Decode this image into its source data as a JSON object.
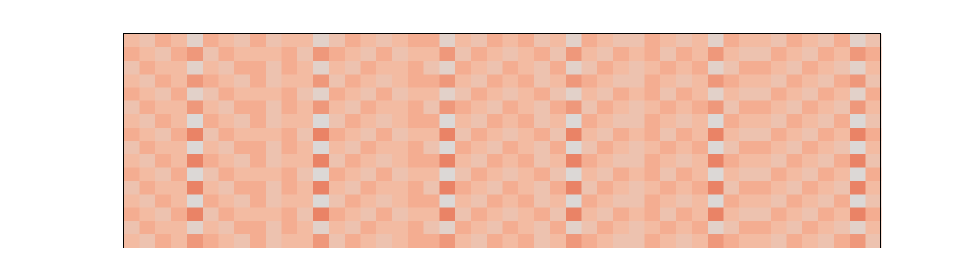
{
  "chart_data": {
    "type": "heatmap",
    "zlim": [
      0,
      9
    ],
    "colormap": [
      "#dcd8d6",
      "#f6b79c",
      "#e05a3a"
    ],
    "values": [
      [
        4,
        3,
        5,
        4,
        1,
        5,
        4,
        3,
        5,
        3,
        4,
        4,
        1,
        3,
        5,
        4,
        3,
        4,
        5,
        5,
        1,
        4,
        3,
        5,
        4,
        5,
        3,
        4,
        1,
        5,
        4,
        3,
        3,
        5,
        4,
        3,
        4,
        1,
        5,
        4,
        4,
        3,
        5,
        4,
        3,
        5,
        1,
        3
      ],
      [
        5,
        4,
        3,
        5,
        6,
        3,
        5,
        4,
        4,
        4,
        5,
        3,
        6,
        5,
        4,
        3,
        5,
        3,
        4,
        4,
        6,
        3,
        5,
        4,
        3,
        4,
        5,
        3,
        6,
        4,
        3,
        5,
        4,
        5,
        3,
        5,
        4,
        6,
        4,
        3,
        3,
        5,
        4,
        3,
        5,
        4,
        6,
        5
      ],
      [
        3,
        5,
        4,
        4,
        1,
        4,
        3,
        5,
        5,
        3,
        5,
        4,
        1,
        4,
        3,
        5,
        4,
        4,
        5,
        3,
        1,
        5,
        4,
        3,
        5,
        4,
        3,
        5,
        1,
        3,
        5,
        4,
        3,
        4,
        5,
        4,
        5,
        1,
        3,
        5,
        5,
        4,
        3,
        5,
        4,
        3,
        1,
        4
      ],
      [
        4,
        3,
        5,
        4,
        6,
        5,
        4,
        3,
        5,
        3,
        4,
        4,
        6,
        3,
        5,
        4,
        3,
        4,
        5,
        5,
        6,
        4,
        3,
        5,
        4,
        5,
        3,
        4,
        6,
        5,
        4,
        3,
        3,
        5,
        4,
        3,
        4,
        6,
        5,
        4,
        4,
        3,
        5,
        4,
        3,
        5,
        6,
        3
      ],
      [
        5,
        4,
        3,
        5,
        1,
        3,
        5,
        4,
        4,
        4,
        5,
        3,
        1,
        5,
        4,
        3,
        5,
        3,
        4,
        4,
        1,
        3,
        5,
        4,
        3,
        4,
        5,
        3,
        1,
        4,
        3,
        5,
        4,
        5,
        3,
        5,
        4,
        1,
        4,
        3,
        3,
        5,
        4,
        3,
        5,
        4,
        1,
        5
      ],
      [
        3,
        5,
        4,
        4,
        6,
        4,
        3,
        5,
        5,
        3,
        5,
        4,
        6,
        4,
        3,
        5,
        4,
        4,
        5,
        3,
        6,
        5,
        4,
        3,
        5,
        4,
        3,
        5,
        6,
        3,
        5,
        4,
        3,
        4,
        5,
        4,
        5,
        6,
        3,
        5,
        5,
        4,
        3,
        5,
        4,
        3,
        6,
        4
      ],
      [
        4,
        3,
        5,
        4,
        0,
        5,
        4,
        3,
        5,
        3,
        4,
        4,
        0,
        3,
        5,
        4,
        3,
        4,
        5,
        5,
        0,
        4,
        3,
        5,
        4,
        5,
        3,
        4,
        0,
        5,
        4,
        3,
        3,
        5,
        4,
        3,
        4,
        0,
        5,
        4,
        4,
        3,
        5,
        4,
        3,
        5,
        0,
        3
      ],
      [
        5,
        4,
        3,
        5,
        7,
        3,
        5,
        4,
        4,
        4,
        5,
        3,
        7,
        5,
        4,
        3,
        5,
        3,
        4,
        4,
        7,
        3,
        5,
        4,
        3,
        4,
        5,
        3,
        7,
        4,
        3,
        5,
        4,
        5,
        3,
        5,
        4,
        7,
        4,
        3,
        3,
        5,
        4,
        3,
        5,
        4,
        7,
        5
      ],
      [
        3,
        5,
        4,
        4,
        0,
        4,
        3,
        5,
        5,
        3,
        5,
        4,
        0,
        4,
        3,
        5,
        4,
        4,
        5,
        3,
        0,
        5,
        4,
        3,
        5,
        4,
        3,
        5,
        0,
        3,
        5,
        4,
        3,
        4,
        5,
        4,
        5,
        0,
        3,
        5,
        5,
        4,
        3,
        5,
        4,
        3,
        0,
        4
      ],
      [
        4,
        3,
        5,
        4,
        7,
        5,
        4,
        3,
        5,
        3,
        4,
        4,
        7,
        3,
        5,
        4,
        3,
        4,
        5,
        5,
        7,
        4,
        3,
        5,
        4,
        5,
        3,
        4,
        7,
        5,
        4,
        3,
        3,
        5,
        4,
        3,
        4,
        7,
        5,
        4,
        4,
        3,
        5,
        4,
        3,
        5,
        7,
        3
      ],
      [
        5,
        4,
        3,
        5,
        0,
        3,
        5,
        4,
        4,
        4,
        5,
        3,
        0,
        5,
        4,
        3,
        5,
        3,
        4,
        4,
        0,
        3,
        5,
        4,
        3,
        4,
        5,
        3,
        0,
        4,
        3,
        5,
        4,
        5,
        3,
        5,
        4,
        0,
        4,
        3,
        3,
        5,
        4,
        3,
        5,
        4,
        0,
        5
      ],
      [
        3,
        5,
        4,
        4,
        7,
        4,
        3,
        5,
        5,
        3,
        5,
        4,
        7,
        4,
        3,
        5,
        4,
        4,
        5,
        3,
        7,
        5,
        4,
        3,
        5,
        4,
        3,
        5,
        7,
        3,
        5,
        4,
        3,
        4,
        5,
        4,
        5,
        7,
        3,
        5,
        5,
        4,
        3,
        5,
        4,
        3,
        7,
        4
      ],
      [
        4,
        3,
        5,
        4,
        0,
        5,
        4,
        3,
        5,
        3,
        4,
        4,
        0,
        3,
        5,
        4,
        3,
        4,
        5,
        5,
        0,
        4,
        3,
        5,
        4,
        5,
        3,
        4,
        0,
        5,
        4,
        3,
        3,
        5,
        4,
        3,
        4,
        0,
        5,
        4,
        4,
        3,
        5,
        4,
        3,
        5,
        0,
        3
      ],
      [
        5,
        4,
        3,
        5,
        7,
        3,
        5,
        4,
        4,
        4,
        5,
        3,
        7,
        5,
        4,
        3,
        5,
        3,
        4,
        4,
        7,
        3,
        5,
        4,
        3,
        4,
        5,
        3,
        7,
        4,
        3,
        5,
        4,
        5,
        3,
        5,
        4,
        7,
        4,
        3,
        3,
        5,
        4,
        3,
        5,
        4,
        7,
        5
      ],
      [
        3,
        5,
        4,
        4,
        1,
        4,
        3,
        5,
        5,
        3,
        5,
        4,
        1,
        4,
        3,
        5,
        4,
        4,
        5,
        3,
        1,
        5,
        4,
        3,
        5,
        4,
        3,
        5,
        1,
        3,
        5,
        4,
        3,
        4,
        5,
        4,
        5,
        1,
        3,
        5,
        5,
        4,
        3,
        5,
        4,
        3,
        1,
        4
      ],
      [
        4,
        3,
        5,
        4,
        6,
        5,
        4,
        3,
        5,
        3,
        4,
        4,
        6,
        3,
        5,
        4,
        3,
        4,
        5,
        5,
        6,
        4,
        3,
        5,
        4,
        5,
        3,
        4,
        6,
        5,
        4,
        3,
        3,
        5,
        4,
        3,
        4,
        6,
        5,
        4,
        4,
        3,
        5,
        4,
        3,
        5,
        6,
        3
      ]
    ]
  }
}
